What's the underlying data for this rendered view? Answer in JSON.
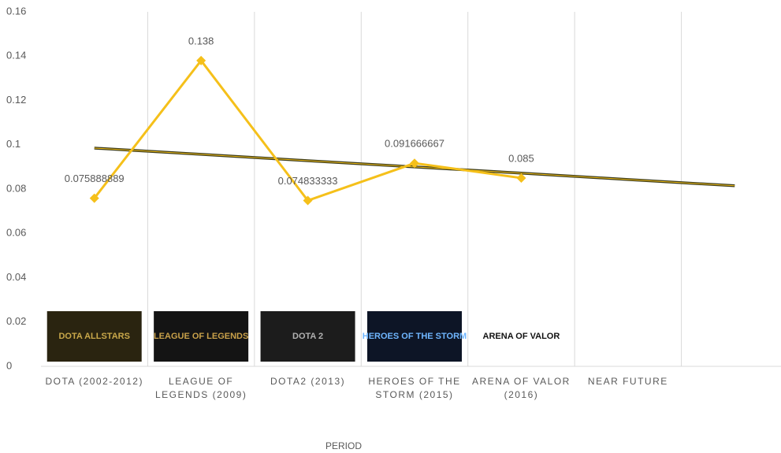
{
  "chart_data": {
    "type": "line",
    "x_label": "PERIOD",
    "categories": [
      "DOTA (2002-2012)",
      "LEAGUE OF LEGENDS (2009)",
      "DOTA2 (2013)",
      "HEROES OF THE STORM (2015)",
      "ARENA OF VALOR (2016)",
      "NEAR FUTURE",
      null
    ],
    "series": [
      {
        "color": "#f5c01a",
        "values": [
          0.075888889,
          0.138,
          0.074833333,
          0.091666667,
          0.085,
          null,
          null
        ]
      }
    ],
    "trendline": {
      "color": "#3a3a1a",
      "values": [
        0.0985,
        0.0957,
        0.0928,
        0.09,
        0.0872,
        0.0843,
        0.0815
      ]
    },
    "logos": [
      "DOTA ALLSTARS",
      "LEAGUE OF LEGENDS",
      "DOTA 2",
      "HEROES OF THE STORM",
      "ARENA OF VALOR",
      null,
      null
    ],
    "ylim": [
      0,
      0.16
    ],
    "yticks": [
      0,
      0.02,
      0.04,
      0.06,
      0.08,
      0.1,
      0.12,
      0.14,
      0.16
    ],
    "grid": "vertical"
  }
}
